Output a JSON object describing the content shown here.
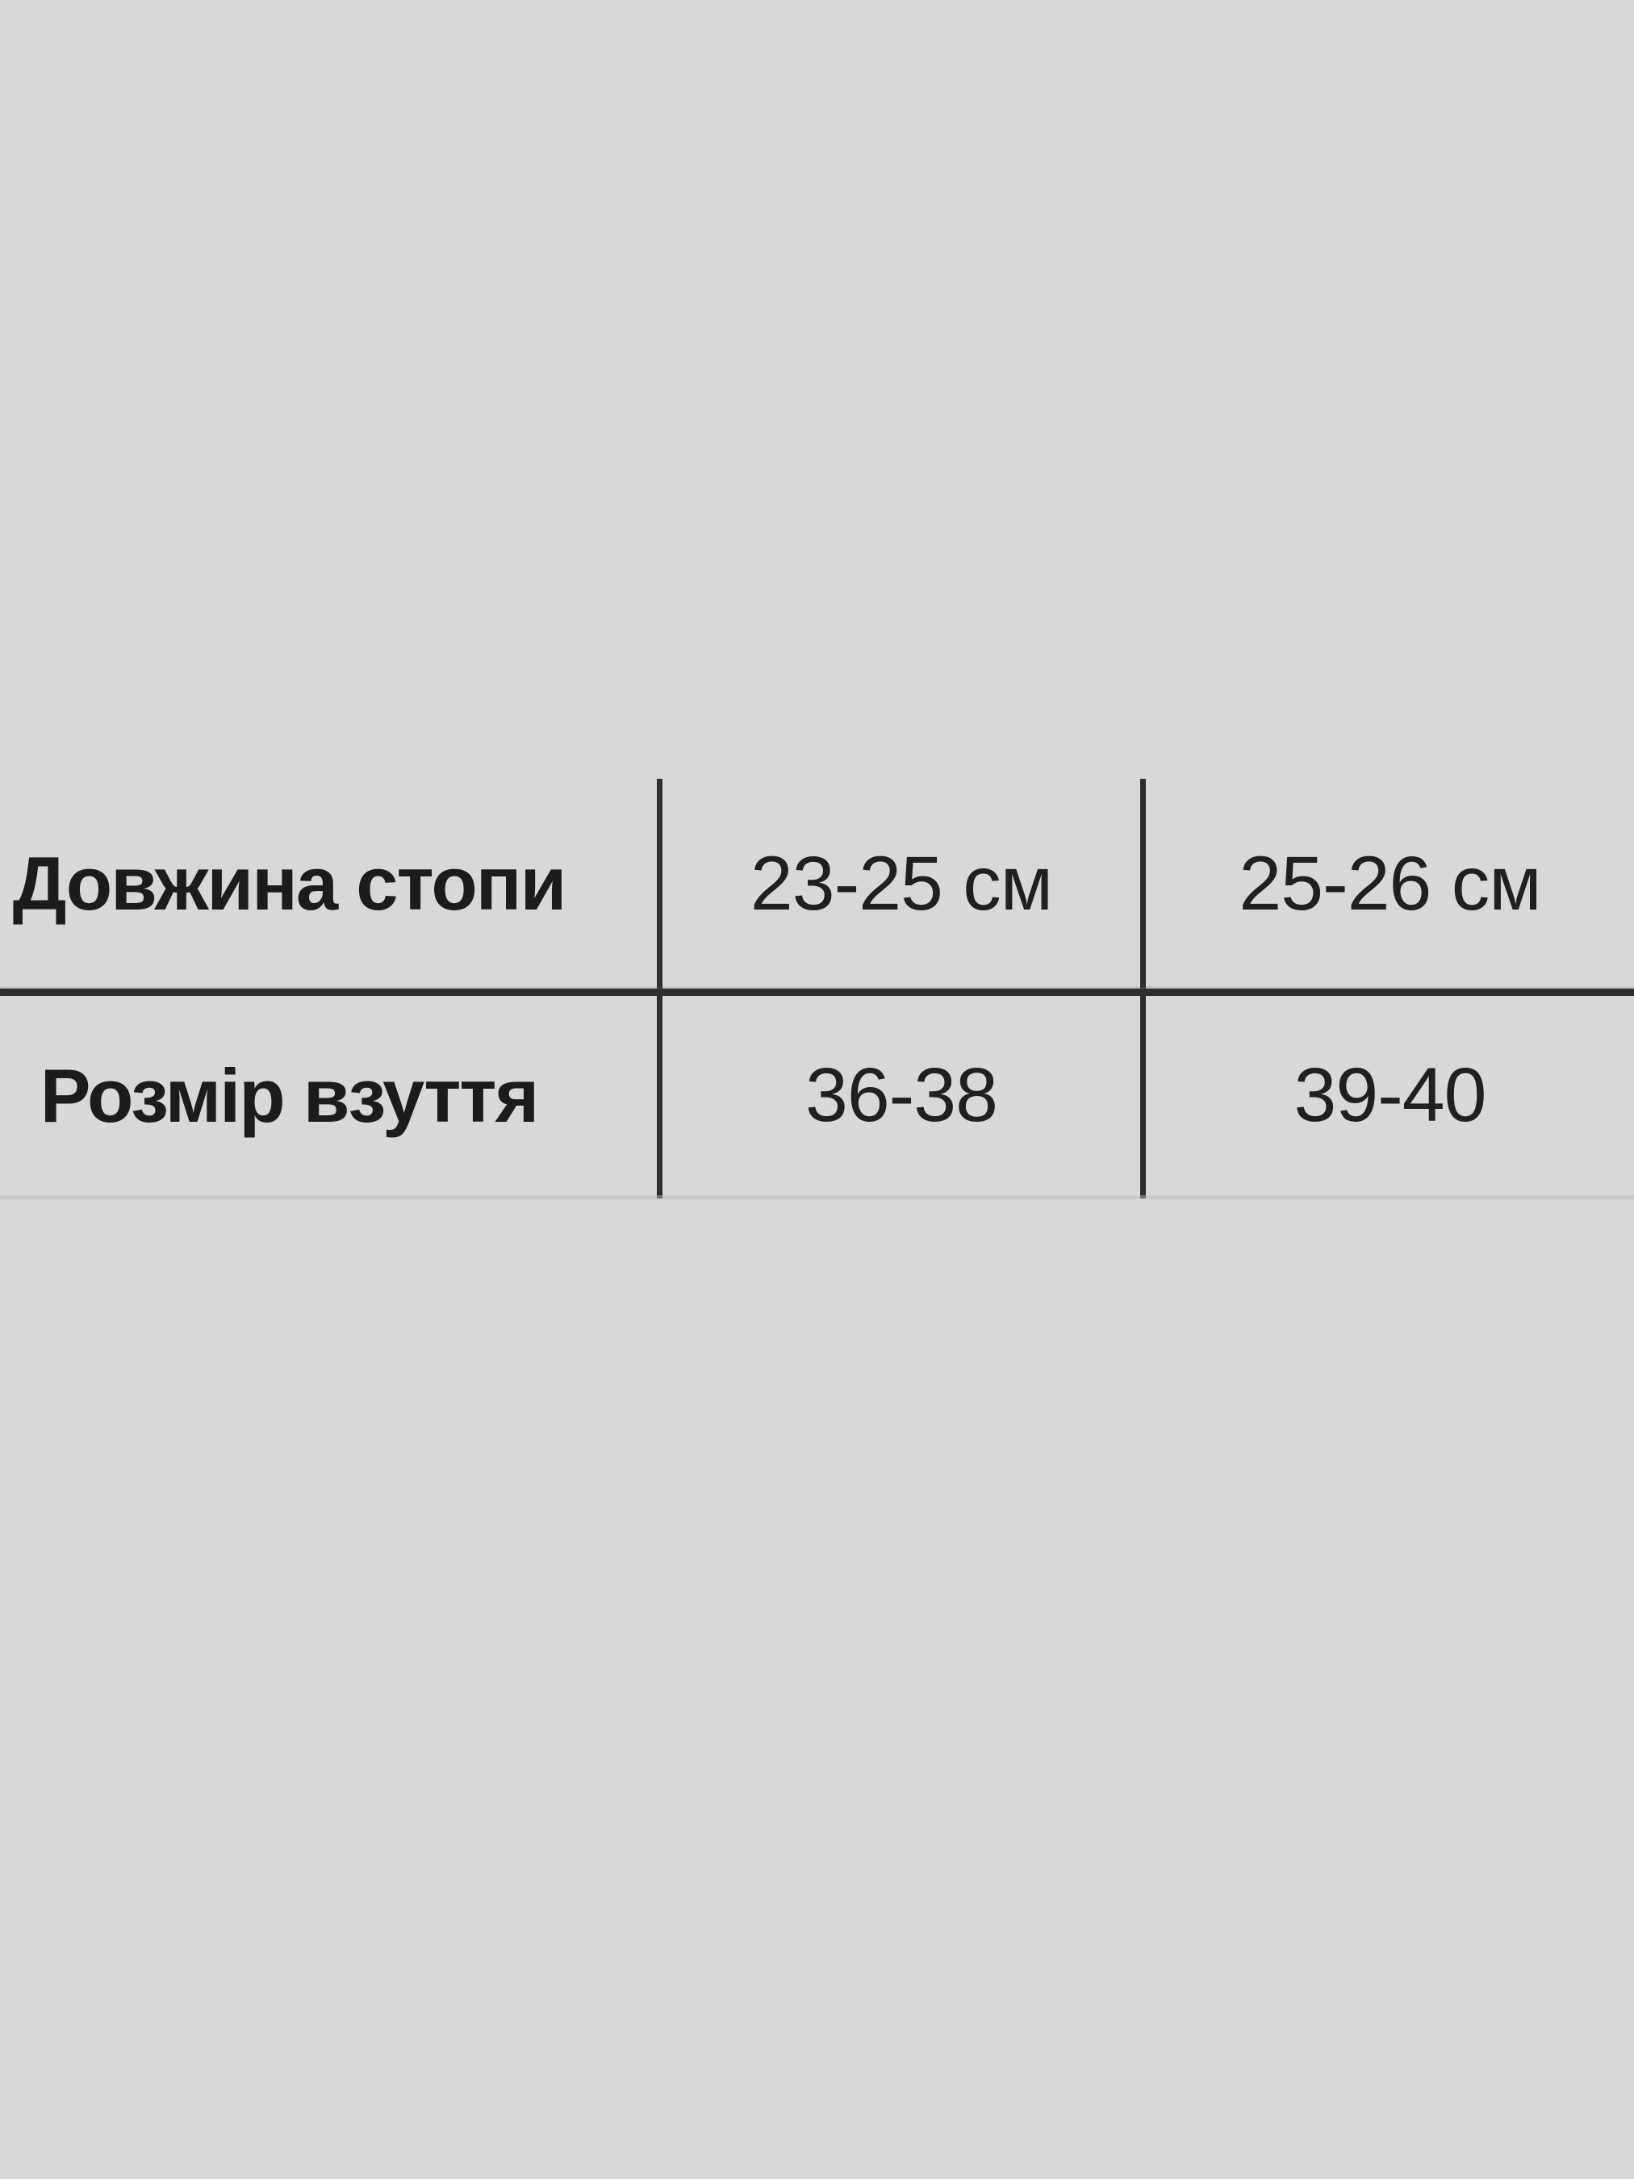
{
  "colors": {
    "background": "#d8d8d8",
    "divider": "#2d2d2d",
    "text": "#1c1c1c"
  },
  "size_table": {
    "rows": [
      {
        "label": "Довжина стопи",
        "values": [
          "23-25 см",
          "25-26 см"
        ]
      },
      {
        "label": "Розмір взуття",
        "values": [
          "36-38",
          "39-40"
        ]
      }
    ]
  }
}
